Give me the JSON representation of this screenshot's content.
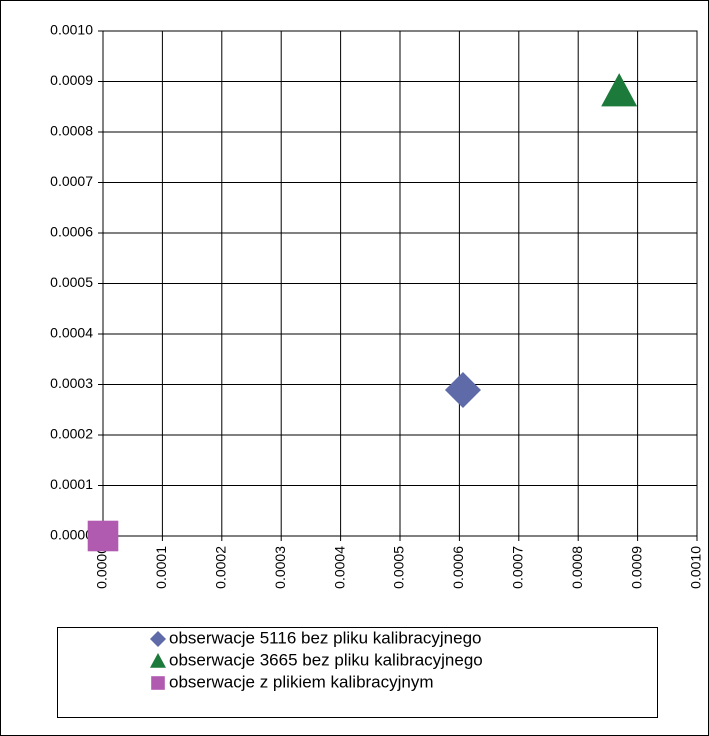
{
  "chart_data": {
    "type": "scatter",
    "series": [
      {
        "name": "obserwacje 5116 bez pliku kalibracyjnego",
        "color": "#5f6aa8",
        "marker": "diamond",
        "x": [
          0.000606
        ],
        "values": [
          0.000289
        ]
      },
      {
        "name": "obserwacje 3665 bez pliku kalibracyjnego",
        "color": "#1c7a3a",
        "marker": "triangle",
        "x": [
          0.000869
        ],
        "values": [
          0.000881
        ]
      },
      {
        "name": "obserwacje z plikiem kalibracyjnym",
        "color": "#b05ab0",
        "marker": "square",
        "x": [
          0
        ],
        "values": [
          0
        ]
      }
    ],
    "xlim": [
      0,
      0.001
    ],
    "ylim": [
      0,
      0.001
    ],
    "xticks": [
      {
        "value": 0,
        "label": "0.0000"
      },
      {
        "value": 0.0001,
        "label": "0.0001"
      },
      {
        "value": 0.0002,
        "label": "0.0002"
      },
      {
        "value": 0.0003,
        "label": "0.0003"
      },
      {
        "value": 0.0004,
        "label": "0.0004"
      },
      {
        "value": 0.0005,
        "label": "0.0005"
      },
      {
        "value": 0.0006,
        "label": "0.0006"
      },
      {
        "value": 0.0007,
        "label": "0.0007"
      },
      {
        "value": 0.0008,
        "label": "0.0008"
      },
      {
        "value": 0.0009,
        "label": "0.0009"
      },
      {
        "value": 0.001,
        "label": "0.0010"
      }
    ],
    "yticks": [
      {
        "value": 0,
        "label": "0.0000"
      },
      {
        "value": 0.0001,
        "label": "0.0001"
      },
      {
        "value": 0.0002,
        "label": "0.0002"
      },
      {
        "value": 0.0003,
        "label": "0.0003"
      },
      {
        "value": 0.0004,
        "label": "0.0004"
      },
      {
        "value": 0.0005,
        "label": "0.0005"
      },
      {
        "value": 0.0006,
        "label": "0.0006"
      },
      {
        "value": 0.0007,
        "label": "0.0007"
      },
      {
        "value": 0.0008,
        "label": "0.0008"
      },
      {
        "value": 0.0009,
        "label": "0.0009"
      },
      {
        "value": 0.001,
        "label": "0.0010"
      }
    ],
    "grid": true,
    "legend": "bottom"
  }
}
